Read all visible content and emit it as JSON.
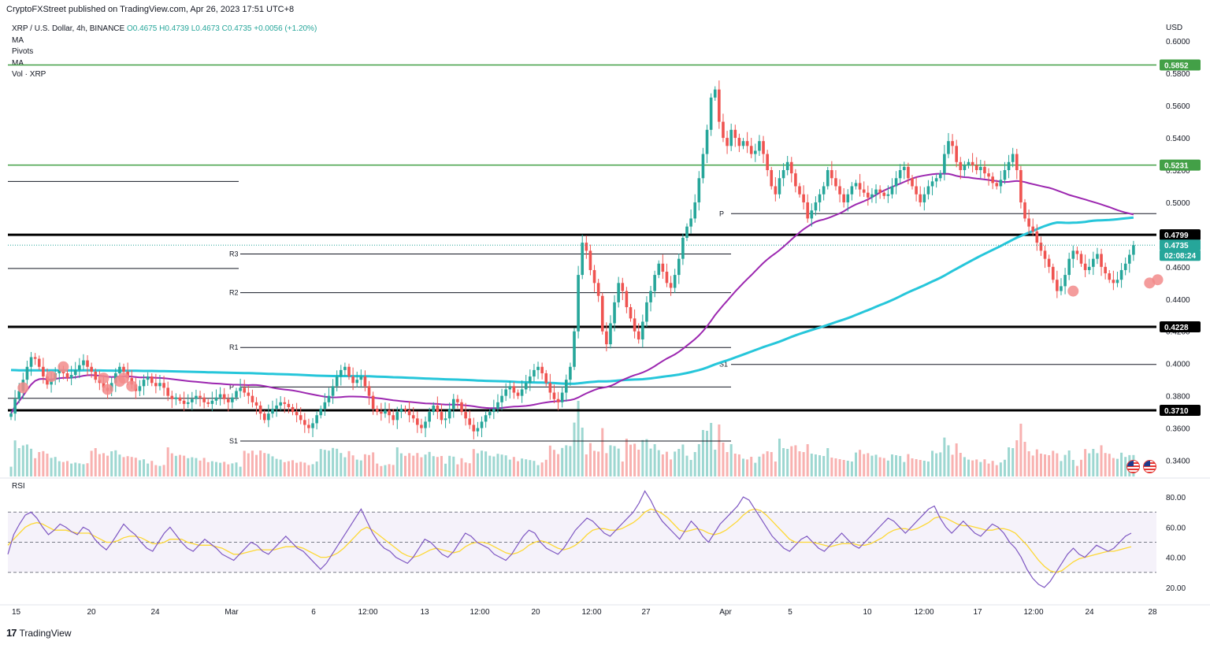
{
  "header": {
    "publisher": "CryptoFXStreet published on TradingView.com, Apr 26, 2023 17:51 UTC+8"
  },
  "legend": {
    "symbol": "XRP / U.S. Dollar, 4h, BINANCE",
    "ohlc": "O0.4675 H0.4739 L0.4673 C0.4735 +0.0056 (+1.20%)",
    "indicators": [
      "MA",
      "Pivots",
      "MA",
      "Vol · XRP"
    ]
  },
  "rsi_label": "RSI",
  "footer": {
    "brand": "TradingView",
    "logo": "17"
  },
  "icons": {
    "flag_1": "us-flag-icon",
    "flag_2": "us-flag-icon",
    "logo": "tradingview-logo-icon"
  },
  "colors": {
    "up": "#26a69a",
    "down": "#ef5350",
    "ma_purple": "#9c27b0",
    "ma_cyan": "#26c6da",
    "green_level": "#43a047",
    "rsi_line": "#7e57c2",
    "rsi_ma": "#fdd835",
    "marker": "#f28b8b"
  },
  "chart_data": [
    {
      "type": "candlestick",
      "title": "XRP / U.S. Dollar, 4h, BINANCE",
      "currency_label": "USD",
      "y_ticks": [
        "0.6000",
        "0.5800",
        "0.5600",
        "0.5400",
        "0.5200",
        "0.5000",
        "0.4800",
        "0.4600",
        "0.4400",
        "0.4200",
        "0.4000",
        "0.3800",
        "0.3600",
        "0.3400"
      ],
      "ylim": [
        0.33,
        0.605
      ],
      "x_ticks": [
        "15",
        "20",
        "24",
        "Mar",
        "6",
        "12:00",
        "13",
        "12:00",
        "20",
        "12:00",
        "27",
        "Apr",
        "5",
        "10",
        "12:00",
        "17",
        "12:00",
        "24",
        "28"
      ],
      "price_tags": [
        {
          "value": "0.5852",
          "style": "green"
        },
        {
          "value": "0.5231",
          "style": "green"
        },
        {
          "value": "0.4799",
          "style": "black"
        },
        {
          "value": "0.4735",
          "style": "current"
        },
        {
          "value": "02:08:24",
          "style": "countdown"
        },
        {
          "value": "0.4228",
          "style": "black"
        },
        {
          "value": "0.3710",
          "style": "black"
        }
      ],
      "horizontal_levels": [
        0.5852,
        0.5231,
        0.4799,
        0.4228,
        0.371
      ],
      "pivots": [
        {
          "label": "R3",
          "value": 0.468
        },
        {
          "label": "R2",
          "value": 0.444
        },
        {
          "label": "R1",
          "value": 0.41
        },
        {
          "label": "P",
          "value": 0.3855
        },
        {
          "label": "S1",
          "value": 0.352
        },
        {
          "label": "P",
          "value": 0.493
        },
        {
          "label": "S1",
          "value": 0.3995
        }
      ],
      "close_series": [
        0.369,
        0.378,
        0.383,
        0.39,
        0.398,
        0.404,
        0.403,
        0.398,
        0.392,
        0.387,
        0.39,
        0.394,
        0.396,
        0.394,
        0.391,
        0.393,
        0.396,
        0.399,
        0.402,
        0.398,
        0.395,
        0.39,
        0.388,
        0.385,
        0.383,
        0.388,
        0.394,
        0.398,
        0.395,
        0.391,
        0.387,
        0.383,
        0.386,
        0.39,
        0.392,
        0.388,
        0.386,
        0.388,
        0.385,
        0.38,
        0.378,
        0.379,
        0.377,
        0.375,
        0.376,
        0.378,
        0.38,
        0.379,
        0.376,
        0.375,
        0.377,
        0.379,
        0.381,
        0.378,
        0.376,
        0.379,
        0.383,
        0.385,
        0.382,
        0.38,
        0.376,
        0.374,
        0.369,
        0.365,
        0.369,
        0.372,
        0.374,
        0.376,
        0.375,
        0.373,
        0.37,
        0.368,
        0.365,
        0.362,
        0.36,
        0.363,
        0.368,
        0.372,
        0.376,
        0.38,
        0.386,
        0.392,
        0.396,
        0.398,
        0.392,
        0.388,
        0.39,
        0.392,
        0.386,
        0.38,
        0.372,
        0.37,
        0.369,
        0.371,
        0.368,
        0.365,
        0.37,
        0.372,
        0.371,
        0.368,
        0.366,
        0.362,
        0.36,
        0.364,
        0.37,
        0.374,
        0.37,
        0.365,
        0.366,
        0.372,
        0.378,
        0.376,
        0.37,
        0.366,
        0.362,
        0.358,
        0.36,
        0.364,
        0.368,
        0.37,
        0.372,
        0.376,
        0.38,
        0.384,
        0.386,
        0.382,
        0.38,
        0.384,
        0.388,
        0.392,
        0.396,
        0.398,
        0.394,
        0.388,
        0.382,
        0.378,
        0.376,
        0.382,
        0.39,
        0.398,
        0.42,
        0.455,
        0.475,
        0.47,
        0.458,
        0.45,
        0.442,
        0.42,
        0.412,
        0.425,
        0.438,
        0.45,
        0.445,
        0.435,
        0.428,
        0.42,
        0.415,
        0.426,
        0.438,
        0.445,
        0.455,
        0.462,
        0.457,
        0.45,
        0.447,
        0.455,
        0.465,
        0.478,
        0.485,
        0.49,
        0.5,
        0.515,
        0.53,
        0.545,
        0.565,
        0.57,
        0.55,
        0.54,
        0.535,
        0.545,
        0.54,
        0.535,
        0.538,
        0.535,
        0.53,
        0.532,
        0.538,
        0.53,
        0.52,
        0.51,
        0.505,
        0.515,
        0.52,
        0.525,
        0.518,
        0.51,
        0.505,
        0.5,
        0.49,
        0.495,
        0.5,
        0.505,
        0.51,
        0.52,
        0.515,
        0.51,
        0.505,
        0.5,
        0.505,
        0.51,
        0.512,
        0.508,
        0.506,
        0.503,
        0.505,
        0.508,
        0.506,
        0.504,
        0.505,
        0.51,
        0.515,
        0.52,
        0.522,
        0.515,
        0.51,
        0.505,
        0.5,
        0.505,
        0.51,
        0.513,
        0.515,
        0.518,
        0.53,
        0.538,
        0.535,
        0.525,
        0.52,
        0.523,
        0.525,
        0.523,
        0.52,
        0.522,
        0.518,
        0.516,
        0.512,
        0.51,
        0.514,
        0.52,
        0.525,
        0.53,
        0.52,
        0.5,
        0.49,
        0.485,
        0.482,
        0.475,
        0.47,
        0.465,
        0.46,
        0.452,
        0.445,
        0.448,
        0.455,
        0.465,
        0.47,
        0.468,
        0.462,
        0.458,
        0.46,
        0.465,
        0.468,
        0.46,
        0.456,
        0.452,
        0.45,
        0.452,
        0.458,
        0.462,
        0.4675,
        0.4735
      ]
    },
    {
      "type": "line",
      "title": "RSI",
      "y_ticks": [
        "80.00",
        "60.00",
        "40.00",
        "20.00"
      ],
      "ylim": [
        10,
        90
      ],
      "bands": [
        70,
        50,
        30
      ],
      "series": [
        {
          "role": "rsi",
          "values": [
            42,
            55,
            62,
            68,
            70,
            66,
            60,
            55,
            58,
            62,
            60,
            57,
            55,
            60,
            58,
            52,
            48,
            45,
            50,
            56,
            62,
            58,
            55,
            50,
            46,
            44,
            50,
            56,
            60,
            55,
            50,
            46,
            44,
            48,
            52,
            49,
            46,
            42,
            40,
            38,
            42,
            46,
            50,
            48,
            44,
            42,
            46,
            50,
            54,
            50,
            46,
            44,
            40,
            36,
            32,
            36,
            42,
            48,
            54,
            60,
            66,
            72,
            64,
            56,
            50,
            46,
            44,
            40,
            38,
            36,
            40,
            46,
            52,
            50,
            46,
            42,
            40,
            44,
            50,
            56,
            54,
            50,
            48,
            46,
            42,
            40,
            38,
            42,
            48,
            54,
            58,
            56,
            50,
            46,
            44,
            42,
            46,
            52,
            58,
            62,
            66,
            64,
            60,
            56,
            54,
            58,
            62,
            66,
            70,
            76,
            84,
            78,
            70,
            64,
            60,
            56,
            52,
            58,
            64,
            60,
            54,
            50,
            56,
            62,
            66,
            70,
            74,
            80,
            78,
            72,
            66,
            60,
            54,
            50,
            46,
            44,
            48,
            52,
            54,
            50,
            46,
            44,
            48,
            52,
            56,
            52,
            48,
            46,
            50,
            54,
            58,
            62,
            66,
            64,
            60,
            56,
            60,
            64,
            68,
            72,
            74,
            66,
            60,
            56,
            60,
            64,
            60,
            56,
            54,
            58,
            62,
            60,
            56,
            50,
            46,
            40,
            32,
            26,
            22,
            20,
            24,
            30,
            36,
            42,
            46,
            42,
            40,
            44,
            48,
            46,
            44,
            46,
            50,
            54,
            56
          ]
        },
        {
          "role": "rsi_ma",
          "values": [
            48,
            52,
            56,
            60,
            62,
            63,
            62,
            60,
            58,
            58,
            58,
            57,
            56,
            56,
            56,
            54,
            52,
            50,
            50,
            51,
            53,
            54,
            54,
            53,
            51,
            49,
            49,
            50,
            52,
            52,
            52,
            50,
            49,
            48,
            48,
            48,
            47,
            46,
            44,
            42,
            42,
            43,
            44,
            45,
            45,
            45,
            45,
            46,
            47,
            47,
            47,
            46,
            44,
            42,
            40,
            40,
            41,
            43,
            46,
            50,
            54,
            58,
            60,
            58,
            55,
            52,
            49,
            46,
            43,
            41,
            40,
            41,
            43,
            45,
            46,
            45,
            44,
            43,
            44,
            47,
            49,
            50,
            50,
            49,
            47,
            45,
            43,
            42,
            43,
            45,
            48,
            50,
            51,
            50,
            48,
            46,
            45,
            46,
            48,
            51,
            55,
            58,
            59,
            59,
            58,
            58,
            59,
            61,
            63,
            66,
            70,
            72,
            71,
            69,
            66,
            62,
            58,
            57,
            58,
            59,
            58,
            56,
            55,
            56,
            58,
            61,
            64,
            68,
            71,
            72,
            71,
            68,
            64,
            60,
            56,
            52,
            50,
            50,
            50,
            50,
            49,
            48,
            47,
            48,
            49,
            49,
            49,
            48,
            48,
            49,
            51,
            53,
            56,
            58,
            59,
            59,
            58,
            59,
            61,
            63,
            66,
            67,
            66,
            64,
            62,
            61,
            61,
            60,
            59,
            58,
            58,
            59,
            59,
            58,
            56,
            52,
            48,
            43,
            38,
            34,
            31,
            30,
            31,
            34,
            37,
            39,
            40,
            41,
            42,
            43,
            44,
            44,
            45,
            46,
            47
          ]
        }
      ]
    }
  ]
}
